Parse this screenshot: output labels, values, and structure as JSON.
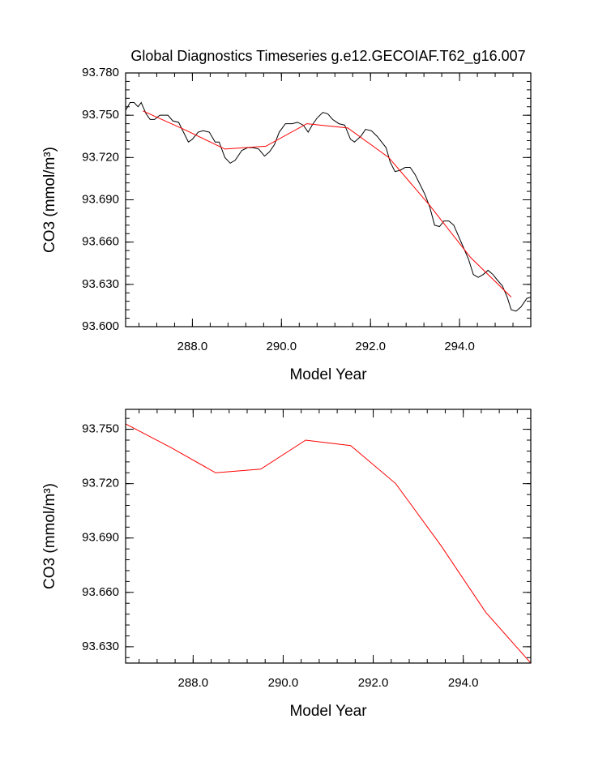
{
  "chart_data": [
    {
      "type": "line",
      "title": "Global Diagnostics Timeseries g.e12.GECOIAF.T62_g16.007",
      "x_label": "Model Year",
      "y_label": "CO3 (mmol/m³)",
      "xlim": [
        286.5,
        295.6
      ],
      "ylim": [
        93.6,
        93.78
      ],
      "xticks": [
        {
          "value": 288,
          "label": "288.0"
        },
        {
          "value": 290,
          "label": "290.0"
        },
        {
          "value": 292,
          "label": "292.0"
        },
        {
          "value": 294,
          "label": "294.0"
        }
      ],
      "yticks": [
        {
          "value": 93.6,
          "label": "93.600"
        },
        {
          "value": 93.63,
          "label": "93.630"
        },
        {
          "value": 93.66,
          "label": "93.660"
        },
        {
          "value": 93.69,
          "label": "93.690"
        },
        {
          "value": 93.72,
          "label": "93.720"
        },
        {
          "value": 93.75,
          "label": "93.750"
        },
        {
          "value": 93.78,
          "label": "93.780"
        }
      ],
      "series": [
        {
          "color": "#000000",
          "x": [
            286.51,
            286.6,
            286.69,
            286.78,
            286.85,
            286.96,
            287.05,
            287.15,
            287.27,
            287.45,
            287.56,
            287.69,
            287.8,
            287.91,
            288.0,
            288.13,
            288.24,
            288.38,
            288.51,
            288.6,
            288.73,
            288.85,
            288.96,
            289.11,
            289.24,
            289.36,
            289.49,
            289.62,
            289.73,
            289.84,
            289.95,
            290.09,
            290.24,
            290.36,
            290.49,
            290.6,
            290.69,
            290.8,
            290.93,
            291.04,
            291.15,
            291.29,
            291.42,
            291.55,
            291.64,
            291.78,
            291.89,
            292.02,
            292.15,
            292.25,
            292.35,
            292.44,
            292.55,
            292.67,
            292.78,
            292.89,
            293.0,
            293.11,
            293.22,
            293.33,
            293.44,
            293.55,
            293.65,
            293.76,
            293.87,
            293.98,
            294.09,
            294.2,
            294.31,
            294.42,
            294.53,
            294.64,
            294.75,
            294.85,
            294.96,
            295.07,
            295.16,
            295.27,
            295.38,
            295.51,
            295.6
          ],
          "values": [
            93.754,
            93.759,
            93.759,
            93.756,
            93.759,
            93.751,
            93.747,
            93.747,
            93.75,
            93.75,
            93.746,
            93.745,
            93.738,
            93.731,
            93.733,
            93.738,
            93.739,
            93.738,
            93.731,
            93.731,
            93.72,
            93.716,
            93.718,
            93.725,
            93.727,
            93.727,
            93.726,
            93.721,
            93.724,
            93.729,
            93.738,
            93.744,
            93.744,
            93.745,
            93.743,
            93.738,
            93.743,
            93.748,
            93.752,
            93.751,
            93.747,
            93.744,
            93.743,
            93.733,
            93.731,
            93.735,
            93.74,
            93.739,
            93.735,
            93.731,
            93.727,
            93.717,
            93.71,
            93.711,
            93.713,
            93.713,
            93.708,
            93.701,
            93.694,
            93.685,
            93.672,
            93.671,
            93.675,
            93.675,
            93.672,
            93.664,
            93.656,
            93.648,
            93.637,
            93.635,
            93.637,
            93.64,
            93.637,
            93.633,
            93.629,
            93.621,
            93.612,
            93.611,
            93.614,
            93.62,
            93.621
          ]
        },
        {
          "color": "#ff0000",
          "x": [
            286.89,
            287.81,
            288.73,
            289.65,
            290.57,
            291.49,
            292.41,
            293.33,
            294.25,
            295.16
          ],
          "values": [
            93.753,
            93.74,
            93.726,
            93.728,
            93.744,
            93.741,
            93.72,
            93.686,
            93.649,
            93.621
          ]
        }
      ]
    },
    {
      "type": "line",
      "x_label": "Model Year",
      "y_label": "CO3 (mmol/m³)",
      "xlim": [
        286.5,
        295.5
      ],
      "ylim": [
        93.621,
        93.761
      ],
      "xticks": [
        {
          "value": 288,
          "label": "288.0"
        },
        {
          "value": 290,
          "label": "290.0"
        },
        {
          "value": 292,
          "label": "292.0"
        },
        {
          "value": 294,
          "label": "294.0"
        }
      ],
      "yticks": [
        {
          "value": 93.63,
          "label": "93.630"
        },
        {
          "value": 93.66,
          "label": "93.660"
        },
        {
          "value": 93.69,
          "label": "93.690"
        },
        {
          "value": 93.72,
          "label": "93.720"
        },
        {
          "value": 93.75,
          "label": "93.750"
        }
      ],
      "series": [
        {
          "color": "#ff0000",
          "x": [
            286.5,
            287.5,
            288.5,
            289.5,
            290.5,
            291.5,
            292.5,
            293.5,
            294.5,
            295.5
          ],
          "values": [
            93.753,
            93.74,
            93.726,
            93.728,
            93.744,
            93.741,
            93.72,
            93.686,
            93.649,
            93.621
          ]
        }
      ]
    }
  ]
}
